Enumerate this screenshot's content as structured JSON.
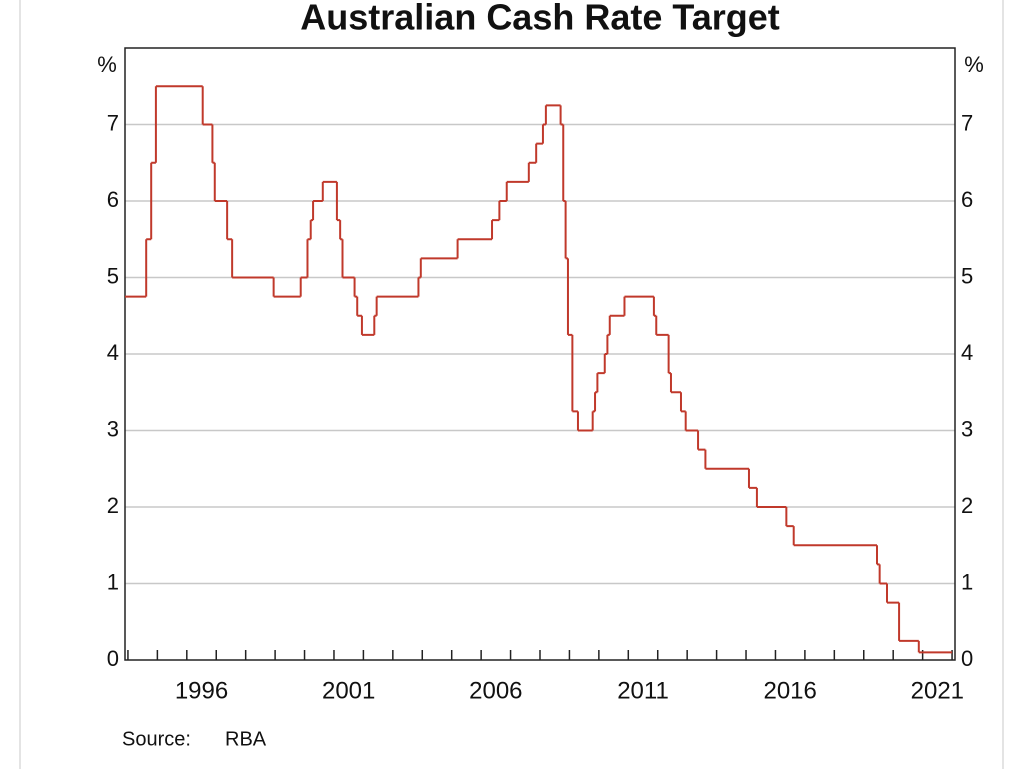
{
  "chart_data": {
    "type": "step-line",
    "title": "Australian Cash Rate Target",
    "y_unit": "%",
    "source_label": "Source:",
    "source": "RBA",
    "x": [
      1993.9,
      1994.62,
      1994.79,
      1994.95,
      1996.54,
      1996.87,
      1996.95,
      1997.37,
      1997.54,
      1998.95,
      1999.87,
      2000.1,
      2000.21,
      2000.29,
      2000.62,
      2001.1,
      2001.21,
      2001.29,
      2001.7,
      2001.79,
      2001.95,
      2002.37,
      2002.45,
      2003.87,
      2003.95,
      2005.2,
      2006.37,
      2006.62,
      2006.87,
      2007.62,
      2007.87,
      2008.1,
      2008.2,
      2008.7,
      2008.79,
      2008.87,
      2008.95,
      2009.1,
      2009.29,
      2009.79,
      2009.87,
      2009.95,
      2010.2,
      2010.29,
      2010.37,
      2010.87,
      2011.87,
      2011.95,
      2012.37,
      2012.45,
      2012.79,
      2012.95,
      2013.37,
      2013.62,
      2015.1,
      2015.37,
      2016.37,
      2016.62,
      2019.45,
      2019.54,
      2019.79,
      2020.2,
      2020.87,
      2022.0
    ],
    "series": [
      {
        "name": "Cash rate target",
        "color": "#c0392b",
        "values": [
          4.75,
          5.5,
          6.5,
          7.5,
          7.0,
          6.5,
          6.0,
          5.5,
          5.0,
          4.75,
          5.0,
          5.5,
          5.75,
          6.0,
          6.25,
          5.75,
          5.5,
          5.0,
          4.75,
          4.5,
          4.25,
          4.5,
          4.75,
          5.0,
          5.25,
          5.5,
          5.75,
          6.0,
          6.25,
          6.5,
          6.75,
          7.0,
          7.25,
          7.0,
          6.0,
          5.25,
          4.25,
          3.25,
          3.0,
          3.25,
          3.5,
          3.75,
          4.0,
          4.25,
          4.5,
          4.75,
          4.5,
          4.25,
          3.75,
          3.5,
          3.25,
          3.0,
          2.75,
          2.5,
          2.25,
          2.0,
          1.75,
          1.5,
          1.25,
          1.0,
          0.75,
          0.25,
          0.1,
          0.1
        ]
      }
    ],
    "xlim": [
      1993.9,
      2022.1
    ],
    "xticks": [
      1994,
      1995,
      1996,
      1997,
      1998,
      1999,
      2000,
      2001,
      2002,
      2003,
      2004,
      2005,
      2006,
      2007,
      2008,
      2009,
      2010,
      2011,
      2012,
      2013,
      2014,
      2015,
      2016,
      2017,
      2018,
      2019,
      2020,
      2021,
      2022
    ],
    "xtick_labels": [
      {
        "value": 1996.5,
        "label": "1996"
      },
      {
        "value": 2001.5,
        "label": "2001"
      },
      {
        "value": 2006.5,
        "label": "2006"
      },
      {
        "value": 2011.5,
        "label": "2011"
      },
      {
        "value": 2016.5,
        "label": "2016"
      },
      {
        "value": 2021.5,
        "label": "2021"
      }
    ],
    "ylim": [
      0,
      8
    ],
    "yticks": [
      0,
      1,
      2,
      3,
      4,
      5,
      6,
      7
    ],
    "grid": true
  }
}
